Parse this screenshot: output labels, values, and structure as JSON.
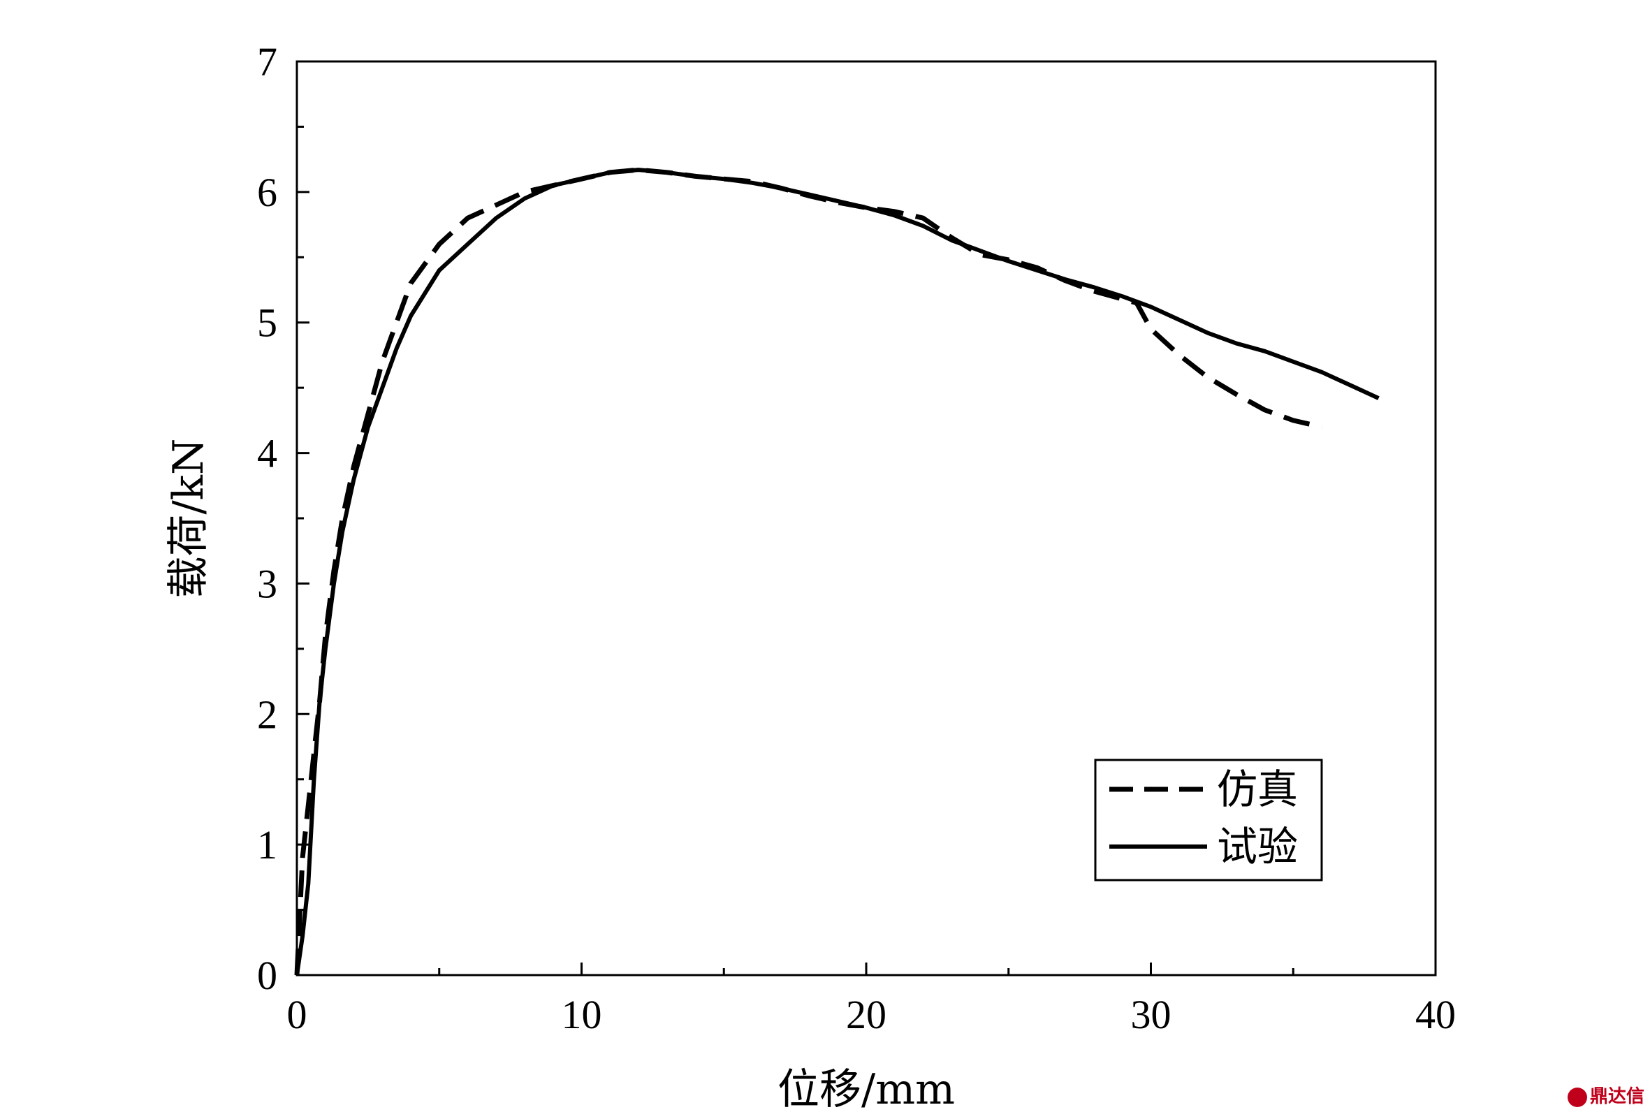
{
  "chart_data": {
    "type": "line",
    "title": "",
    "xlabel": "位移/mm",
    "ylabel": "载荷/kN",
    "xlim": [
      0,
      40
    ],
    "ylim": [
      0,
      7
    ],
    "xticks": [
      0,
      10,
      20,
      30,
      40
    ],
    "yticks": [
      0,
      1,
      2,
      3,
      4,
      5,
      6,
      7
    ],
    "grid": false,
    "legend_position": "bottom-right",
    "series": [
      {
        "name": "仿真",
        "style": "dashed",
        "color": "#000000",
        "x": [
          0,
          0.2,
          0.4,
          0.6,
          0.8,
          1.0,
          1.3,
          1.6,
          2.0,
          2.5,
          3.0,
          3.5,
          4.0,
          5.0,
          6.0,
          7.0,
          8.0,
          9.0,
          10.0,
          11.0,
          12.0,
          13.0,
          14.0,
          15.0,
          16.0,
          17.0,
          18.0,
          19.0,
          20.0,
          21.0,
          22.0,
          23.0,
          24.0,
          25.0,
          26.0,
          27.0,
          28.0,
          29.0,
          29.5,
          30.0,
          31.0,
          32.0,
          33.0,
          34.0,
          35.0,
          36.0
        ],
        "y": [
          0,
          0.9,
          1.3,
          1.7,
          2.1,
          2.6,
          3.1,
          3.5,
          3.9,
          4.3,
          4.7,
          5.0,
          5.3,
          5.6,
          5.8,
          5.9,
          6.0,
          6.05,
          6.1,
          6.15,
          6.17,
          6.15,
          6.12,
          6.1,
          6.08,
          6.03,
          5.97,
          5.92,
          5.88,
          5.85,
          5.8,
          5.65,
          5.52,
          5.48,
          5.42,
          5.32,
          5.24,
          5.18,
          5.15,
          4.95,
          4.75,
          4.58,
          4.45,
          4.33,
          4.25,
          4.2
        ]
      },
      {
        "name": "试验",
        "style": "solid",
        "color": "#000000",
        "x": [
          0,
          0.2,
          0.4,
          0.6,
          0.8,
          1.0,
          1.3,
          1.6,
          2.0,
          2.5,
          3.0,
          3.5,
          4.0,
          5.0,
          6.0,
          7.0,
          8.0,
          9.0,
          10.0,
          11.0,
          12.0,
          13.0,
          14.0,
          15.0,
          16.0,
          17.0,
          18.0,
          19.0,
          20.0,
          21.0,
          22.0,
          23.0,
          24.0,
          25.0,
          26.0,
          27.0,
          28.0,
          29.0,
          30.0,
          31.0,
          32.0,
          33.0,
          34.0,
          35.0,
          36.0,
          37.0,
          38.0
        ],
        "y": [
          0,
          0.3,
          0.7,
          1.5,
          2.1,
          2.5,
          3.0,
          3.4,
          3.8,
          4.2,
          4.5,
          4.8,
          5.05,
          5.4,
          5.6,
          5.8,
          5.95,
          6.05,
          6.1,
          6.15,
          6.17,
          6.15,
          6.12,
          6.1,
          6.07,
          6.03,
          5.98,
          5.93,
          5.88,
          5.82,
          5.74,
          5.63,
          5.55,
          5.47,
          5.4,
          5.33,
          5.27,
          5.2,
          5.12,
          5.02,
          4.92,
          4.84,
          4.78,
          4.7,
          4.62,
          4.52,
          4.42
        ]
      }
    ]
  },
  "watermark": {
    "text": "鼎达信"
  }
}
